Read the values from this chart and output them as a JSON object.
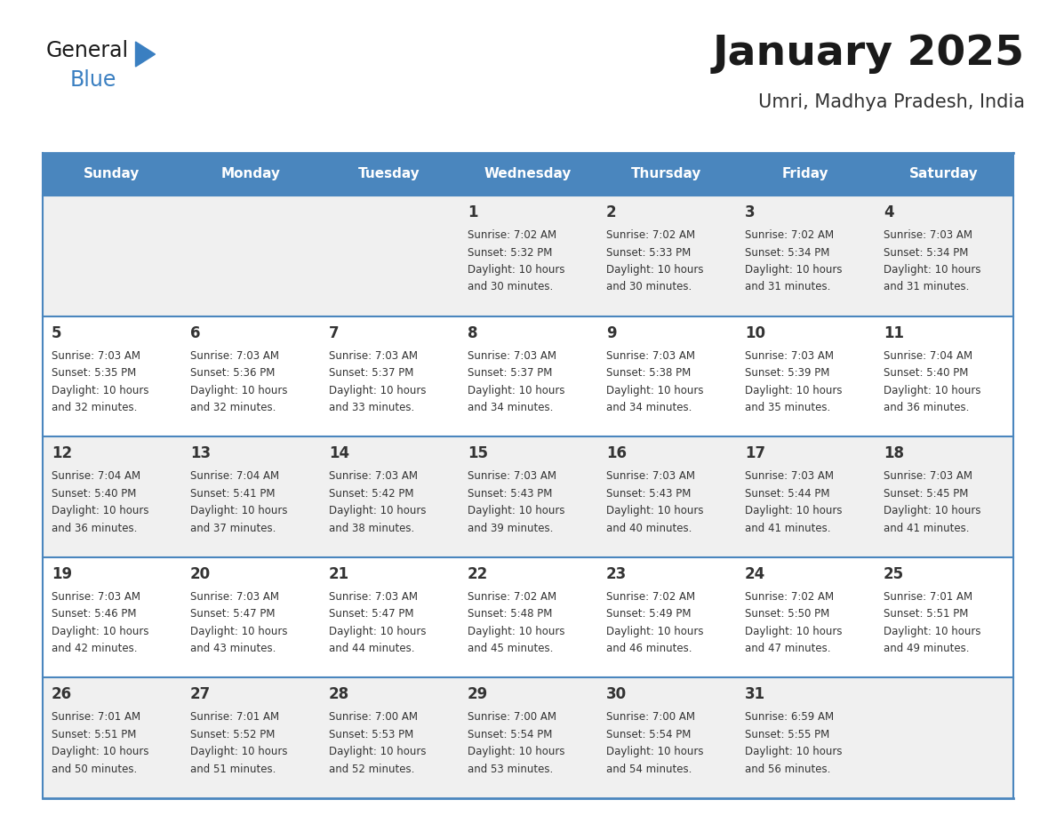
{
  "title": "January 2025",
  "subtitle": "Umri, Madhya Pradesh, India",
  "header_bg": "#4a86be",
  "header_text_color": "#ffffff",
  "row_bg_odd": "#f0f0f0",
  "row_bg_even": "#ffffff",
  "border_color": "#4a86be",
  "days_of_week": [
    "Sunday",
    "Monday",
    "Tuesday",
    "Wednesday",
    "Thursday",
    "Friday",
    "Saturday"
  ],
  "calendar_data": [
    [
      {
        "day": "",
        "sunrise": "",
        "sunset": "",
        "daylight": ""
      },
      {
        "day": "",
        "sunrise": "",
        "sunset": "",
        "daylight": ""
      },
      {
        "day": "",
        "sunrise": "",
        "sunset": "",
        "daylight": ""
      },
      {
        "day": "1",
        "sunrise": "7:02 AM",
        "sunset": "5:32 PM",
        "daylight": "10 hours and 30 minutes."
      },
      {
        "day": "2",
        "sunrise": "7:02 AM",
        "sunset": "5:33 PM",
        "daylight": "10 hours and 30 minutes."
      },
      {
        "day": "3",
        "sunrise": "7:02 AM",
        "sunset": "5:34 PM",
        "daylight": "10 hours and 31 minutes."
      },
      {
        "day": "4",
        "sunrise": "7:03 AM",
        "sunset": "5:34 PM",
        "daylight": "10 hours and 31 minutes."
      }
    ],
    [
      {
        "day": "5",
        "sunrise": "7:03 AM",
        "sunset": "5:35 PM",
        "daylight": "10 hours and 32 minutes."
      },
      {
        "day": "6",
        "sunrise": "7:03 AM",
        "sunset": "5:36 PM",
        "daylight": "10 hours and 32 minutes."
      },
      {
        "day": "7",
        "sunrise": "7:03 AM",
        "sunset": "5:37 PM",
        "daylight": "10 hours and 33 minutes."
      },
      {
        "day": "8",
        "sunrise": "7:03 AM",
        "sunset": "5:37 PM",
        "daylight": "10 hours and 34 minutes."
      },
      {
        "day": "9",
        "sunrise": "7:03 AM",
        "sunset": "5:38 PM",
        "daylight": "10 hours and 34 minutes."
      },
      {
        "day": "10",
        "sunrise": "7:03 AM",
        "sunset": "5:39 PM",
        "daylight": "10 hours and 35 minutes."
      },
      {
        "day": "11",
        "sunrise": "7:04 AM",
        "sunset": "5:40 PM",
        "daylight": "10 hours and 36 minutes."
      }
    ],
    [
      {
        "day": "12",
        "sunrise": "7:04 AM",
        "sunset": "5:40 PM",
        "daylight": "10 hours and 36 minutes."
      },
      {
        "day": "13",
        "sunrise": "7:04 AM",
        "sunset": "5:41 PM",
        "daylight": "10 hours and 37 minutes."
      },
      {
        "day": "14",
        "sunrise": "7:03 AM",
        "sunset": "5:42 PM",
        "daylight": "10 hours and 38 minutes."
      },
      {
        "day": "15",
        "sunrise": "7:03 AM",
        "sunset": "5:43 PM",
        "daylight": "10 hours and 39 minutes."
      },
      {
        "day": "16",
        "sunrise": "7:03 AM",
        "sunset": "5:43 PM",
        "daylight": "10 hours and 40 minutes."
      },
      {
        "day": "17",
        "sunrise": "7:03 AM",
        "sunset": "5:44 PM",
        "daylight": "10 hours and 41 minutes."
      },
      {
        "day": "18",
        "sunrise": "7:03 AM",
        "sunset": "5:45 PM",
        "daylight": "10 hours and 41 minutes."
      }
    ],
    [
      {
        "day": "19",
        "sunrise": "7:03 AM",
        "sunset": "5:46 PM",
        "daylight": "10 hours and 42 minutes."
      },
      {
        "day": "20",
        "sunrise": "7:03 AM",
        "sunset": "5:47 PM",
        "daylight": "10 hours and 43 minutes."
      },
      {
        "day": "21",
        "sunrise": "7:03 AM",
        "sunset": "5:47 PM",
        "daylight": "10 hours and 44 minutes."
      },
      {
        "day": "22",
        "sunrise": "7:02 AM",
        "sunset": "5:48 PM",
        "daylight": "10 hours and 45 minutes."
      },
      {
        "day": "23",
        "sunrise": "7:02 AM",
        "sunset": "5:49 PM",
        "daylight": "10 hours and 46 minutes."
      },
      {
        "day": "24",
        "sunrise": "7:02 AM",
        "sunset": "5:50 PM",
        "daylight": "10 hours and 47 minutes."
      },
      {
        "day": "25",
        "sunrise": "7:01 AM",
        "sunset": "5:51 PM",
        "daylight": "10 hours and 49 minutes."
      }
    ],
    [
      {
        "day": "26",
        "sunrise": "7:01 AM",
        "sunset": "5:51 PM",
        "daylight": "10 hours and 50 minutes."
      },
      {
        "day": "27",
        "sunrise": "7:01 AM",
        "sunset": "5:52 PM",
        "daylight": "10 hours and 51 minutes."
      },
      {
        "day": "28",
        "sunrise": "7:00 AM",
        "sunset": "5:53 PM",
        "daylight": "10 hours and 52 minutes."
      },
      {
        "day": "29",
        "sunrise": "7:00 AM",
        "sunset": "5:54 PM",
        "daylight": "10 hours and 53 minutes."
      },
      {
        "day": "30",
        "sunrise": "7:00 AM",
        "sunset": "5:54 PM",
        "daylight": "10 hours and 54 minutes."
      },
      {
        "day": "31",
        "sunrise": "6:59 AM",
        "sunset": "5:55 PM",
        "daylight": "10 hours and 56 minutes."
      },
      {
        "day": "",
        "sunrise": "",
        "sunset": "",
        "daylight": ""
      }
    ]
  ],
  "fig_width": 11.88,
  "fig_height": 9.18,
  "dpi": 100
}
